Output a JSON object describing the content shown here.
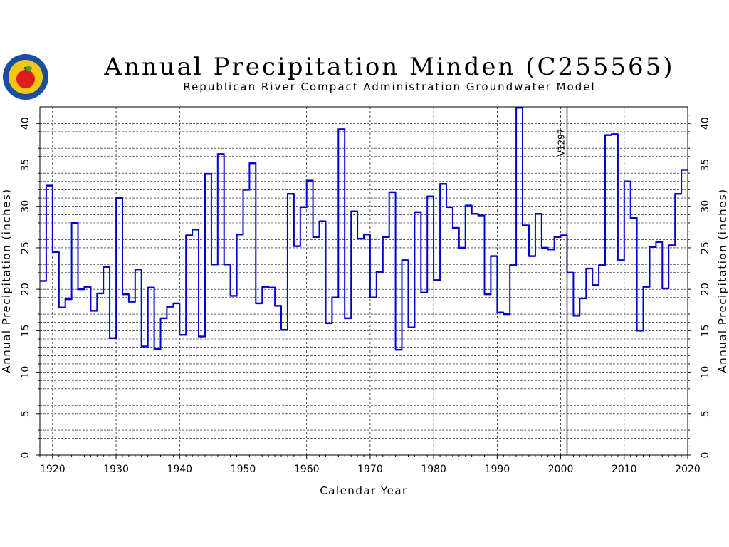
{
  "header": {
    "title": "Annual Precipitation Minden (C255565)",
    "subtitle": "Republican River Compact Administration Groundwater Model"
  },
  "colors": {
    "series": "#0000cc",
    "grid": "#000000",
    "logo_ring": "#1a4fa0",
    "logo_fill": "#f5c518",
    "logo_apple": "#e01b1b",
    "logo_leaf": "#3aa33a"
  },
  "chart_data": {
    "type": "line",
    "step": true,
    "title": "Annual Precipitation Minden (C255565)",
    "subtitle": "Republican River Compact Administration Groundwater Model",
    "xlabel": "Calendar Year",
    "ylabel": "Annual Precipitation (inches)",
    "xlim": [
      1918,
      2020
    ],
    "ylim": [
      0,
      42
    ],
    "xticks": [
      1920,
      1930,
      1940,
      1950,
      1960,
      1970,
      1980,
      1990,
      2000,
      2010,
      2020
    ],
    "yticks": [
      0,
      5,
      10,
      15,
      20,
      25,
      30,
      35,
      40
    ],
    "grid": true,
    "annotations": [
      {
        "text": "V1297",
        "x": 2001
      }
    ],
    "series": [
      {
        "x": [
          1918,
          1919,
          1920,
          1921,
          1922,
          1923,
          1924,
          1925,
          1926,
          1927,
          1928,
          1929,
          1930,
          1931,
          1932,
          1933,
          1934,
          1935,
          1936,
          1937,
          1938,
          1939,
          1940,
          1941,
          1942,
          1943,
          1944,
          1945,
          1946,
          1947,
          1948,
          1949,
          1950,
          1951,
          1952,
          1953,
          1954,
          1955,
          1956,
          1957,
          1958,
          1959,
          1960,
          1961,
          1962,
          1963,
          1964,
          1965,
          1966,
          1967,
          1968,
          1969,
          1970,
          1971,
          1972,
          1973,
          1974,
          1975,
          1976,
          1977,
          1978,
          1979,
          1980,
          1981,
          1982,
          1983,
          1984,
          1985,
          1986,
          1987,
          1988,
          1989,
          1990,
          1991,
          1992,
          1993,
          1994,
          1995,
          1996,
          1997,
          1998,
          1999,
          2000,
          2001,
          2002,
          2003,
          2004,
          2005,
          2006,
          2007,
          2008,
          2009,
          2010,
          2011,
          2012,
          2013,
          2014,
          2015,
          2016,
          2017,
          2018,
          2019
        ],
        "values": [
          21.0,
          32.5,
          24.5,
          17.8,
          18.8,
          28.0,
          20.0,
          20.3,
          17.4,
          19.5,
          22.7,
          14.1,
          31.0,
          19.4,
          18.5,
          22.4,
          13.1,
          20.2,
          12.8,
          16.5,
          17.9,
          18.3,
          14.5,
          26.5,
          27.2,
          14.3,
          33.9,
          23.0,
          36.3,
          23.0,
          19.2,
          26.6,
          32.0,
          35.2,
          18.3,
          20.3,
          20.2,
          18.0,
          15.1,
          31.5,
          25.2,
          29.9,
          33.1,
          26.3,
          28.2,
          15.9,
          19.0,
          39.3,
          16.5,
          29.4,
          26.1,
          26.6,
          19.0,
          22.1,
          26.3,
          31.7,
          12.7,
          23.5,
          15.4,
          29.3,
          19.6,
          31.2,
          21.1,
          32.7,
          29.9,
          27.4,
          25.0,
          30.1,
          29.1,
          28.9,
          19.4,
          24.0,
          17.2,
          17.0,
          22.9,
          41.9,
          27.7,
          24.0,
          29.1,
          25.0,
          24.8,
          26.3,
          26.5,
          22.0,
          16.8,
          18.9,
          22.5,
          20.5,
          22.9,
          38.6,
          38.7,
          23.5,
          33.0,
          28.6,
          15.0,
          20.3,
          25.1,
          25.7,
          20.1,
          25.3,
          31.5,
          34.4
        ]
      }
    ]
  }
}
